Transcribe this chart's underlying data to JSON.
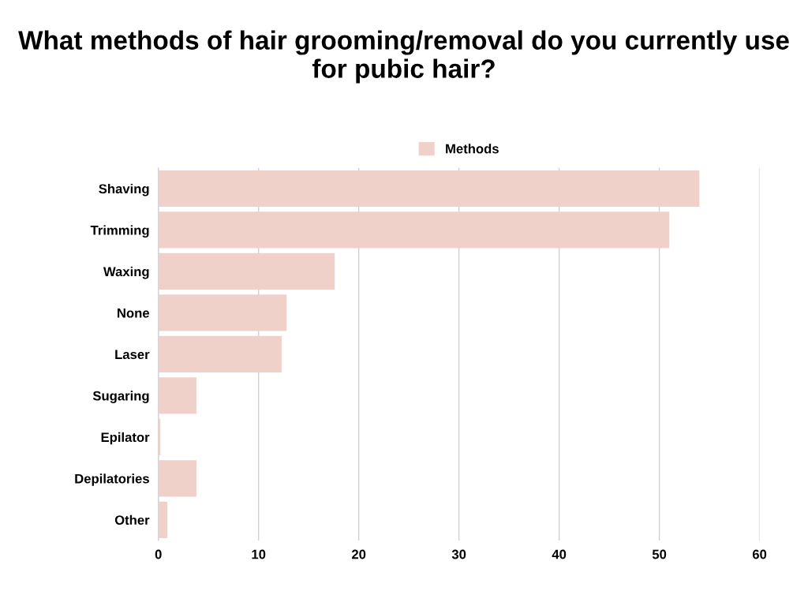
{
  "chart_data": {
    "type": "bar",
    "orientation": "horizontal",
    "title": "What methods of hair grooming/removal do you currently use for pubic hair?",
    "categories": [
      "Shaving",
      "Trimming",
      "Waxing",
      "None",
      "Laser",
      "Sugaring",
      "Epilator",
      "Depilatories",
      "Other"
    ],
    "series": [
      {
        "name": "Methods",
        "color": "#f0d1c9",
        "values": [
          54,
          51,
          17.6,
          12.8,
          12.3,
          3.8,
          0.2,
          3.8,
          0.9
        ]
      }
    ],
    "xlim": [
      0,
      60
    ],
    "xticks": [
      0,
      10,
      20,
      30,
      40,
      50,
      60
    ],
    "grid": "x",
    "legend": "top"
  }
}
